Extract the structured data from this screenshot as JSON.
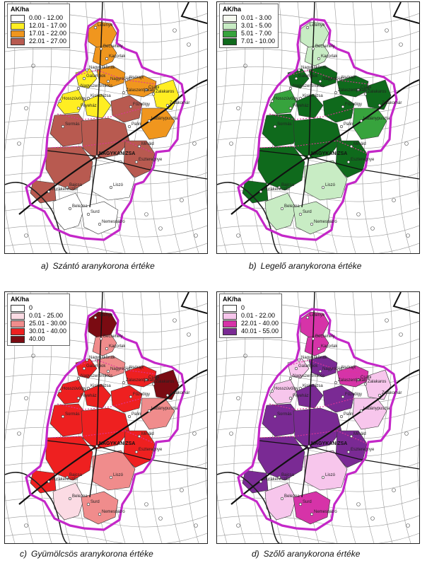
{
  "legend_title": "AK/ha",
  "towns": [
    "Letenye",
    "Becsehely",
    "Zalakaros",
    "Nagyrécse",
    "Galambok",
    "Zalakomár",
    "Nagybakónak",
    "Csapi",
    "Nagyszentmiklós",
    "Hosszúvölgy",
    "Kiskanizsa",
    "Sormás",
    "Liszó",
    "Belezna",
    "Surd",
    "Nemespátró",
    "Miháld",
    "Kacorlak",
    "NAGYKANIZSA",
    "Ladánypuszta",
    "Fityeház",
    "Palin",
    "Bajcsa",
    "Fűzvölgy",
    "Zalaszentjakab",
    "Murakeresztúr",
    "Alsórajk",
    "Eszteregnye"
  ],
  "maps": [
    {
      "letter": "a)",
      "caption": "Szántó aranykorona értéke",
      "legend": [
        {
          "label": "0.00 - 12.00",
          "color": "#ffffff"
        },
        {
          "label": "12.01 - 17.00",
          "color": "#ffee22"
        },
        {
          "label": "17.01 - 22.00",
          "color": "#f0961e"
        },
        {
          "label": "22.01 - 27.00",
          "color": "#b85a50"
        }
      ]
    },
    {
      "letter": "b)",
      "caption": "Legelő aranykorona értéke",
      "legend": [
        {
          "label": "0.01 - 3.00",
          "color": "#f6fbf0"
        },
        {
          "label": "3.01 - 5.00",
          "color": "#c8ecc4"
        },
        {
          "label": "5.01 - 7.00",
          "color": "#37a33d"
        },
        {
          "label": "7.01 - 10.00",
          "color": "#0f6a1c"
        }
      ]
    },
    {
      "letter": "c)",
      "caption": "Gyümölcsös aranykorona értéke",
      "legend": [
        {
          "label": "0",
          "color": "#ffffff"
        },
        {
          "label": "0.01 - 25.00",
          "color": "#fbdbe4"
        },
        {
          "label": "25.01 - 30.00",
          "color": "#f08c8c"
        },
        {
          "label": "30.01 - 40.00",
          "color": "#ee2020"
        },
        {
          "label": "40.00",
          "color": "#7a0b12"
        }
      ]
    },
    {
      "letter": "d)",
      "caption": "Szőlő aranykorona értéke",
      "legend": [
        {
          "label": "0",
          "color": "#ffffff"
        },
        {
          "label": "0.01 - 22.00",
          "color": "#f7c6ec"
        },
        {
          "label": "22.01 - 40.00",
          "color": "#d633a8"
        },
        {
          "label": "40.01 - 55.00",
          "color": "#7a2a94"
        }
      ]
    }
  ]
}
